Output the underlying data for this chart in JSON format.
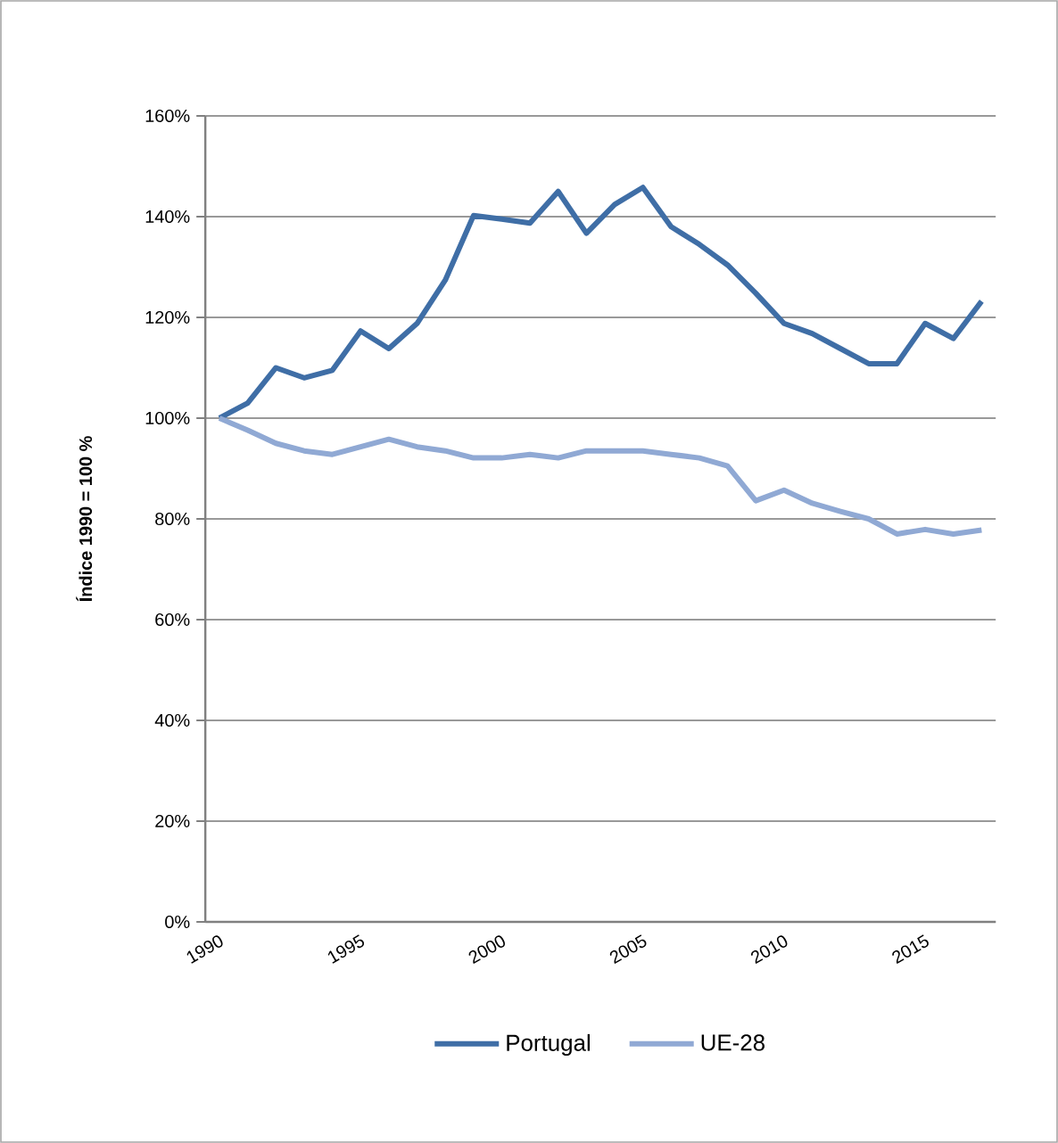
{
  "chart_data": {
    "type": "line",
    "ylabel": "Índice 1990 = 100 %",
    "categories": [
      "1990",
      null,
      null,
      null,
      null,
      "1995",
      null,
      null,
      null,
      null,
      "2000",
      null,
      null,
      null,
      null,
      "2005",
      null,
      null,
      null,
      null,
      "2010",
      null,
      null,
      null,
      null,
      "2015",
      null,
      null
    ],
    "series": [
      {
        "name": "Portugal",
        "color": "#3f6ea6",
        "values": [
          100,
          103,
          110,
          108,
          109.5,
          117.3,
          113.8,
          118.8,
          127.4,
          140.2,
          139.5,
          138.7,
          145,
          136.7,
          142.4,
          145.8,
          138,
          134.5,
          130.4,
          124.8,
          118.8,
          116.8,
          113.8,
          110.8,
          110.8,
          118.8,
          115.8,
          123.2
        ]
      },
      {
        "name": "UE-28",
        "color": "#90a9d4",
        "values": [
          100,
          97.6,
          95,
          93.5,
          92.8,
          94.3,
          95.8,
          94.3,
          93.5,
          92.1,
          92.1,
          92.8,
          92.1,
          93.5,
          93.5,
          93.5,
          92.8,
          92.1,
          90.5,
          83.6,
          85.7,
          83.1,
          81.5,
          80,
          77,
          77.9,
          77,
          77.8
        ]
      }
    ],
    "ylim": [
      0,
      160
    ],
    "yticks": [
      {
        "value": 0,
        "label": "0%"
      },
      {
        "value": 20,
        "label": "20%"
      },
      {
        "value": 40,
        "label": "40%"
      },
      {
        "value": 60,
        "label": "60%"
      },
      {
        "value": 80,
        "label": "80%"
      },
      {
        "value": 100,
        "label": "100%"
      },
      {
        "value": 120,
        "label": "120%"
      },
      {
        "value": 140,
        "label": "140%"
      },
      {
        "value": 160,
        "label": "160%"
      }
    ],
    "grid": "y",
    "legend": "bottom",
    "marker": "none",
    "line_style": "solid"
  }
}
